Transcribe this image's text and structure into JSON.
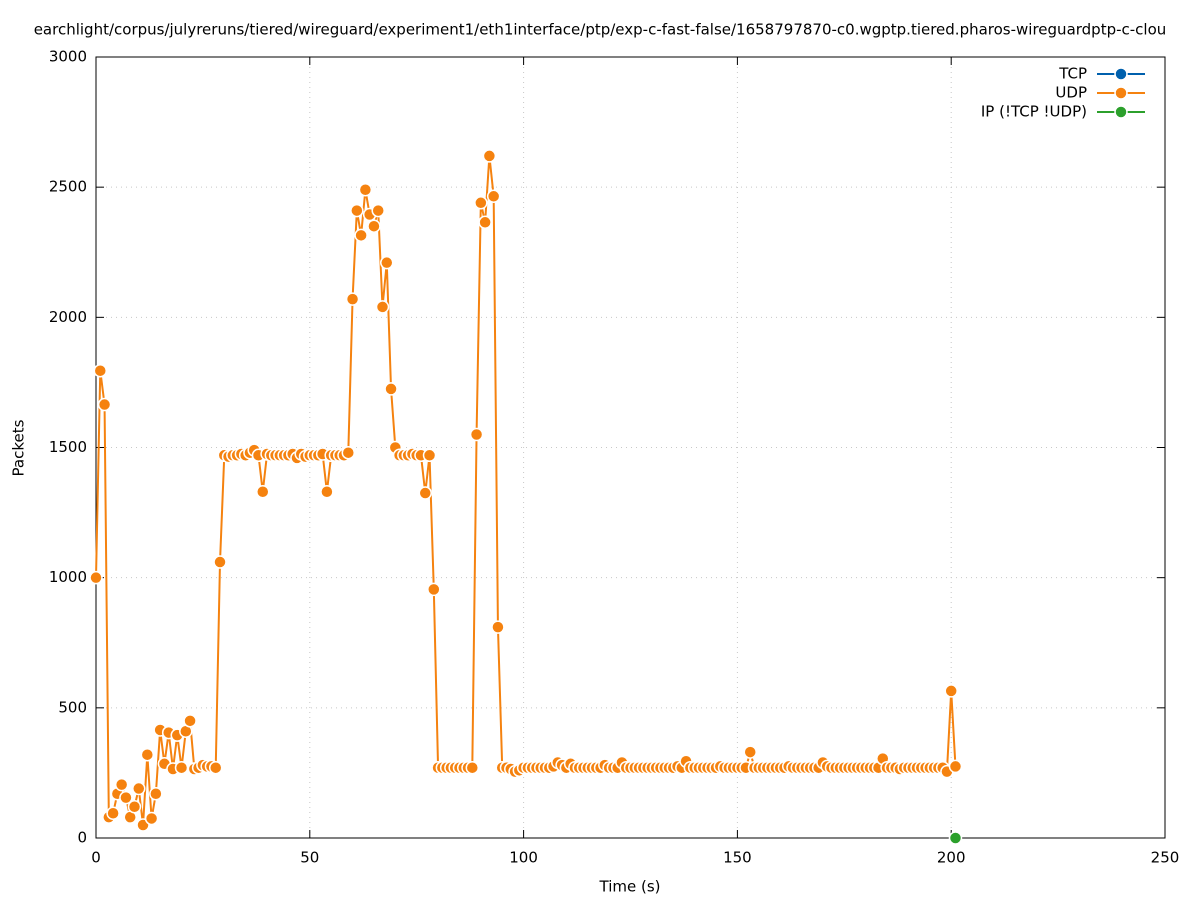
{
  "chart_data": {
    "type": "line",
    "title": "earchlight/corpus/julyreruns/tiered/wireguard/experiment1/eth1interface/ptp/exp-c-fast-false/1658797870-c0.wgptp.tiered.pharos-wireguardptp-c-clou",
    "x_label": "Time (s)",
    "y_label": "Packets",
    "xlim": [
      0,
      250
    ],
    "xticks": [
      0,
      50,
      100,
      150,
      200,
      250
    ],
    "ylim": [
      0,
      3000
    ],
    "yticks": [
      0,
      500,
      1000,
      1500,
      2000,
      2500,
      3000
    ],
    "grid": true,
    "legend": "top-right",
    "series": [
      {
        "name": "TCP",
        "color": "#0060ad",
        "x": [],
        "values": []
      },
      {
        "name": "UDP",
        "color": "#f5820f",
        "x": [
          0,
          1,
          2,
          3,
          4,
          5,
          6,
          7,
          8,
          9,
          10,
          11,
          12,
          13,
          14,
          15,
          16,
          17,
          18,
          19,
          20,
          21,
          22,
          23,
          24,
          25,
          26,
          27,
          28,
          29,
          30,
          31,
          32,
          33,
          34,
          35,
          36,
          37,
          38,
          39,
          40,
          41,
          42,
          43,
          44,
          45,
          46,
          47,
          48,
          49,
          50,
          51,
          52,
          53,
          54,
          55,
          56,
          57,
          58,
          59,
          60,
          61,
          62,
          63,
          64,
          65,
          66,
          67,
          68,
          69,
          70,
          71,
          72,
          73,
          74,
          75,
          76,
          77,
          78,
          79,
          80,
          81,
          82,
          83,
          84,
          85,
          86,
          87,
          88,
          89,
          90,
          91,
          92,
          93,
          94,
          95,
          96,
          97,
          98,
          99,
          100,
          101,
          102,
          103,
          104,
          105,
          106,
          107,
          108,
          109,
          110,
          111,
          112,
          113,
          114,
          115,
          116,
          117,
          118,
          119,
          120,
          121,
          122,
          123,
          124,
          125,
          126,
          127,
          128,
          129,
          130,
          131,
          132,
          133,
          134,
          135,
          136,
          137,
          138,
          139,
          140,
          141,
          142,
          143,
          144,
          145,
          146,
          147,
          148,
          149,
          150,
          151,
          152,
          153,
          154,
          155,
          156,
          157,
          158,
          159,
          160,
          161,
          162,
          163,
          164,
          165,
          166,
          167,
          168,
          169,
          170,
          171,
          172,
          173,
          174,
          175,
          176,
          177,
          178,
          179,
          180,
          181,
          182,
          183,
          184,
          185,
          186,
          187,
          188,
          189,
          190,
          191,
          192,
          193,
          194,
          195,
          196,
          197,
          198,
          199,
          200,
          201
        ],
        "values": [
          1000,
          1795,
          1665,
          80,
          95,
          170,
          205,
          155,
          80,
          120,
          190,
          50,
          320,
          75,
          170,
          415,
          285,
          405,
          265,
          395,
          270,
          410,
          450,
          265,
          270,
          280,
          275,
          275,
          270,
          1060,
          1470,
          1465,
          1470,
          1470,
          1475,
          1470,
          1480,
          1490,
          1470,
          1330,
          1475,
          1470,
          1470,
          1470,
          1470,
          1470,
          1475,
          1460,
          1475,
          1465,
          1470,
          1470,
          1470,
          1475,
          1330,
          1470,
          1470,
          1470,
          1470,
          1480,
          2070,
          2410,
          2315,
          2490,
          2395,
          2350,
          2410,
          2040,
          2210,
          1725,
          1500,
          1470,
          1470,
          1470,
          1475,
          1470,
          1470,
          1325,
          1470,
          955,
          270,
          270,
          270,
          270,
          270,
          270,
          270,
          270,
          270,
          1550,
          2440,
          2365,
          2620,
          2465,
          810,
          270,
          270,
          265,
          255,
          260,
          270,
          270,
          270,
          270,
          270,
          270,
          270,
          275,
          290,
          280,
          270,
          285,
          270,
          270,
          270,
          270,
          270,
          270,
          270,
          280,
          270,
          270,
          270,
          290,
          270,
          270,
          270,
          270,
          270,
          270,
          270,
          270,
          270,
          270,
          270,
          270,
          275,
          270,
          295,
          270,
          270,
          270,
          270,
          270,
          270,
          270,
          275,
          270,
          270,
          270,
          270,
          270,
          270,
          330,
          270,
          270,
          270,
          270,
          270,
          270,
          270,
          270,
          275,
          270,
          270,
          270,
          270,
          270,
          270,
          270,
          290,
          275,
          270,
          270,
          270,
          270,
          270,
          270,
          270,
          270,
          270,
          270,
          270,
          270,
          305,
          270,
          270,
          270,
          265,
          270,
          270,
          270,
          270,
          270,
          270,
          270,
          270,
          270,
          270,
          255,
          565,
          275
        ]
      },
      {
        "name": "IP (!TCP  !UDP)",
        "color": "#2ca02c",
        "x": [
          201
        ],
        "values": [
          0
        ]
      }
    ]
  }
}
